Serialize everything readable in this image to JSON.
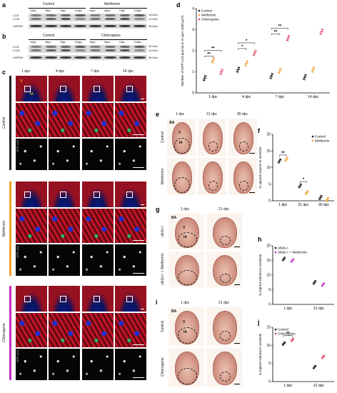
{
  "panels": {
    "a": {
      "letter": "a",
      "groups": [
        "Control",
        "Metformin"
      ],
      "lanes": [
        "1dpc",
        "4dpc",
        "7dpc",
        "14dpc",
        "1dpc",
        "4dpc",
        "7dpc",
        "14dpc"
      ],
      "rows": [
        "LC3I",
        "LC3II",
        "GAPDH"
      ],
      "kda": [
        "16 kDa",
        "14 kDa",
        "36 kDa"
      ]
    },
    "b": {
      "letter": "b",
      "groups": [
        "Control",
        "Chloroquine"
      ],
      "lanes": [
        "1dpc",
        "4dpc",
        "7dpc",
        "14dpc",
        "1dpc",
        "4dpc",
        "7dpc",
        "14dpc"
      ],
      "rows": [
        "LC3I",
        "LC3II",
        "GAPDH"
      ],
      "kda": [
        "16 kDa",
        "14 kDa",
        "36 kDa"
      ]
    },
    "c": {
      "letter": "c",
      "columns": [
        "1 dpc",
        "4 dpc",
        "7 dpc",
        "14 dpc"
      ],
      "groups": [
        "Control",
        "Metformin",
        "Chloroquine"
      ],
      "channel_label": "GFP-LC3",
      "overview_labels": [
        "V",
        "IA"
      ],
      "colors": {
        "control": "#222222",
        "metformin": "#f0a030",
        "chloroquine": "#c030c0"
      }
    },
    "e": {
      "letter": "e",
      "columns": [
        "1 dpc",
        "21 dpc",
        "90 dpc"
      ],
      "rows": [
        "Control",
        "Metformin"
      ],
      "labels": [
        "BA",
        "V",
        "IA"
      ]
    },
    "g": {
      "letter": "g",
      "columns": [
        "1 dpc",
        "21 dpc"
      ],
      "rows": [
        "ulk1b-/-",
        "ulk1b-/- + Metformin"
      ],
      "labels": [
        "BA",
        "V",
        "IA"
      ]
    },
    "i": {
      "letter": "i",
      "columns": [
        "1 dpc",
        "21 dpc"
      ],
      "rows": [
        "Control",
        "Chloroquine"
      ],
      "labels": [
        "BA",
        "V",
        "IA"
      ]
    }
  },
  "chart_data": [
    {
      "id": "d",
      "letter": "d",
      "type": "scatter",
      "ylabel": "Number of GFP-LC3 puncta in IA (per 1000 µm²)",
      "categories": [
        "1 dpc",
        "4 dpc",
        "7 dpc",
        "14 dpc"
      ],
      "ylim": [
        0,
        4
      ],
      "yticks": [
        0,
        1,
        2,
        3,
        4
      ],
      "legend_placement": "top-left",
      "series": [
        {
          "name": "Control",
          "color": "#111111",
          "values": [
            0.7,
            1.1,
            0.8,
            0.75
          ]
        },
        {
          "name": "Metformin",
          "color": "#f0a030",
          "values": [
            1.55,
            1.4,
            1.05,
            1.1
          ]
        },
        {
          "name": "Chloroquine",
          "color": "#e04060",
          "values": [
            1.0,
            1.9,
            2.6,
            2.9
          ]
        }
      ],
      "significance": [
        "**",
        "**",
        "*",
        "*",
        "**",
        "**"
      ]
    },
    {
      "id": "f",
      "letter": "f",
      "type": "scatter",
      "ylabel": "% injured volume in ventricle",
      "categories": [
        "1 dpc",
        "21 dpc",
        "90 dpc"
      ],
      "ylim": [
        0,
        20
      ],
      "yticks": [
        0,
        5,
        10,
        15,
        20
      ],
      "legend_placement": "top-right",
      "series": [
        {
          "name": "Control",
          "color": "#111111",
          "values": [
            12.0,
            4.5,
            1.0
          ]
        },
        {
          "name": "Metformin",
          "color": "#f0a030",
          "values": [
            12.5,
            2.5,
            0.4
          ]
        }
      ],
      "significance": [
        "**",
        "*"
      ]
    },
    {
      "id": "h",
      "letter": "h",
      "type": "scatter",
      "ylabel": "% injured volume in ventricle",
      "categories": [
        "1 dpc",
        "21 dpc"
      ],
      "ylim": [
        0,
        20
      ],
      "yticks": [
        0,
        5,
        10,
        15,
        20
      ],
      "legend_placement": "top-left",
      "series": [
        {
          "name": "ulk1b-/-",
          "color": "#111111",
          "values": [
            15.5,
            7.5
          ]
        },
        {
          "name": "ulk1b-/- + Metformin",
          "color": "#c030c0",
          "values": [
            15.0,
            6.8
          ]
        }
      ],
      "significance": []
    },
    {
      "id": "j",
      "letter": "j",
      "type": "scatter",
      "ylabel": "% injured volume in ventricle",
      "categories": [
        "1 dpc",
        "21 dpc"
      ],
      "ylim": [
        0,
        15
      ],
      "yticks": [
        0,
        5,
        10,
        15
      ],
      "legend_placement": "top-left",
      "series": [
        {
          "name": "Control",
          "color": "#111111",
          "values": [
            10.5,
            4.0
          ]
        },
        {
          "name": "Chloroquine",
          "color": "#e04060",
          "values": [
            11.5,
            6.8
          ]
        }
      ],
      "significance": [
        "**"
      ]
    }
  ]
}
